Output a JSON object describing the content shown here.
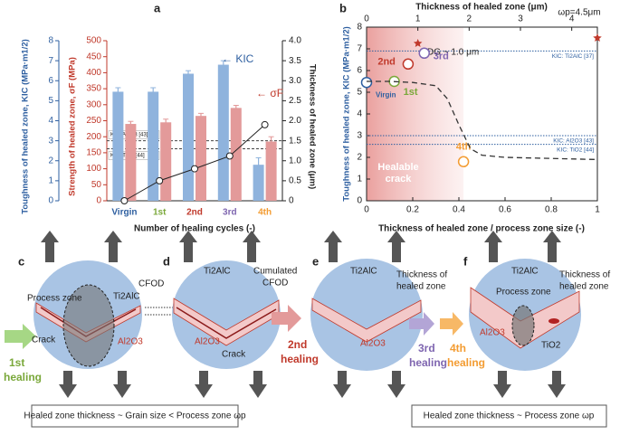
{
  "chart_data": [
    {
      "type": "bar",
      "panel": "a",
      "categories": [
        "Virgin",
        "1st",
        "2nd",
        "3rd",
        "4th"
      ],
      "category_colors": [
        "#2e5fa0",
        "#7aa83a",
        "#c0392b",
        "#7f66b0",
        "#f39c32"
      ],
      "xlabel": "Number of healing cycles (-)",
      "ylabel": "Toughness of healed zone, KIC (MPa·m1/2)",
      "ylim": [
        0,
        8
      ],
      "yticks": [
        0,
        1,
        2,
        3,
        4,
        5,
        6,
        7,
        8
      ],
      "y2label": "Strength of healed zone, σF (MPa)",
      "y2lim": [
        0,
        500
      ],
      "y2ticks": [
        0,
        50,
        100,
        150,
        200,
        250,
        300,
        350,
        400,
        450,
        500
      ],
      "y3label": "Thickness of healed zone (μm)",
      "y3lim": [
        0,
        4
      ],
      "y3ticks": [
        0,
        0.5,
        {
          "value": 1,
          "label": "1.0"
        },
        1.5,
        {
          "value": 2,
          "label": "2.0"
        },
        2.5,
        {
          "value": 3,
          "label": "3.0"
        },
        3.5,
        {
          "value": 4,
          "label": "4.0"
        }
      ],
      "series": [
        {
          "name": "← KIC",
          "color": "#8fb3dd",
          "axis": "y",
          "values": [
            5.45,
            5.45,
            6.35,
            6.8,
            1.8
          ],
          "errors": [
            0.2,
            0.2,
            0.15,
            0.2,
            0.35
          ]
        },
        {
          "name": "← σF",
          "color": "#e39a9a",
          "axis": "y2",
          "values": [
            240,
            245,
            265,
            290,
            185
          ],
          "errors": [
            8,
            10,
            8,
            8,
            15
          ]
        },
        {
          "type": "line",
          "color": "#222222",
          "axis": "y3",
          "values": [
            0,
            0.5,
            0.8,
            1.12,
            1.9
          ]
        }
      ],
      "reference_lines": [
        {
          "label": "KIC: Al2O3 [43]",
          "value": 3.0
        },
        {
          "label": "KIC: TiO2 [44]",
          "value": 2.6
        }
      ]
    },
    {
      "type": "scatter",
      "panel": "b",
      "xlabel": "Thickness of healed zone / process zone size (-)",
      "xlim": [
        0,
        1
      ],
      "xticks": [
        0,
        0.2,
        0.4,
        0.6,
        0.8,
        1
      ],
      "x2label": "Thickness of healed zone (μm)",
      "x2lim": [
        0,
        4.5
      ],
      "x2ticks": [
        0,
        1,
        2,
        3,
        4
      ],
      "ylabel": "Toughness of healed zone, KIC (MPa·m1/2)",
      "ylim": [
        0,
        8
      ],
      "yticks": [
        0,
        1,
        2,
        3,
        4,
        5,
        6,
        7,
        8
      ],
      "series": [
        {
          "labels": [
            "Virgin",
            "1st",
            "2nd",
            "3rd",
            "4th"
          ],
          "colors": [
            "#2e5fa0",
            "#7aa83a",
            "#c0392b",
            "#7f66b0",
            "#f39c32"
          ],
          "x": [
            0,
            0.12,
            0.18,
            0.25,
            0.42
          ],
          "values": [
            5.45,
            5.5,
            6.3,
            6.8,
            1.8
          ]
        },
        {
          "type": "line",
          "color": "#333333",
          "x": [
            0,
            0.1,
            0.2,
            0.3,
            0.35,
            0.4,
            0.45,
            0.5,
            0.6,
            0.8,
            1
          ],
          "values": [
            5.5,
            5.5,
            5.45,
            5.3,
            4.7,
            3.5,
            2.4,
            2.1,
            2.0,
            1.95,
            1.9
          ]
        }
      ],
      "reference_lines": [
        {
          "label": "KIC: Ti2AlC [37]",
          "value": 6.9
        },
        {
          "label": "KIC: Al2O3 [43]",
          "value": 3.0
        },
        {
          "label": "KIC: TiO2 [44]",
          "value": 2.6
        }
      ],
      "region": {
        "label": [
          "Healable",
          "crack"
        ],
        "x_range": [
          0,
          0.42
        ]
      },
      "annotations": [
        {
          "text": "DG ~ 1.0 μm",
          "x2": 1.0
        },
        {
          "text": "ωp=4.5μm",
          "x2": 4.5
        }
      ]
    }
  ],
  "diagram": {
    "c": {
      "label": "c",
      "ti2alc": "Ti2AlC",
      "process_zone": "Process zone",
      "cfod": "CFOD",
      "crack": "Crack",
      "al2o3": "Al2O3",
      "step": "1st",
      "healing": "healing"
    },
    "d": {
      "label": "d",
      "ti2alc": "Ti2AlC",
      "cumulated": [
        "Cumulated",
        "CFOD"
      ],
      "al2o3": "Al2O3",
      "crack": "Crack"
    },
    "e": {
      "label": "e",
      "ti2alc": "Ti2AlC",
      "thickness": [
        "Thickness of",
        "healed zone"
      ],
      "al2o3": "Al2O3"
    },
    "f": {
      "label": "f",
      "ti2alc": "Ti2AlC",
      "process_zone": "Process zone",
      "thickness": [
        "Thickness of",
        "healed zone"
      ],
      "al2o3": "Al2O3",
      "tio2": "TiO2"
    },
    "arrows": [
      {
        "step": "2nd",
        "text": "healing"
      },
      {
        "step": "3rd",
        "text": "healing"
      },
      {
        "step": "4th",
        "text": "healing"
      }
    ],
    "boxes": [
      "Healed zone thickness ~ Grain size < Process zone ωp",
      "Healed zone thickness ~ Process zone ωp"
    ]
  }
}
